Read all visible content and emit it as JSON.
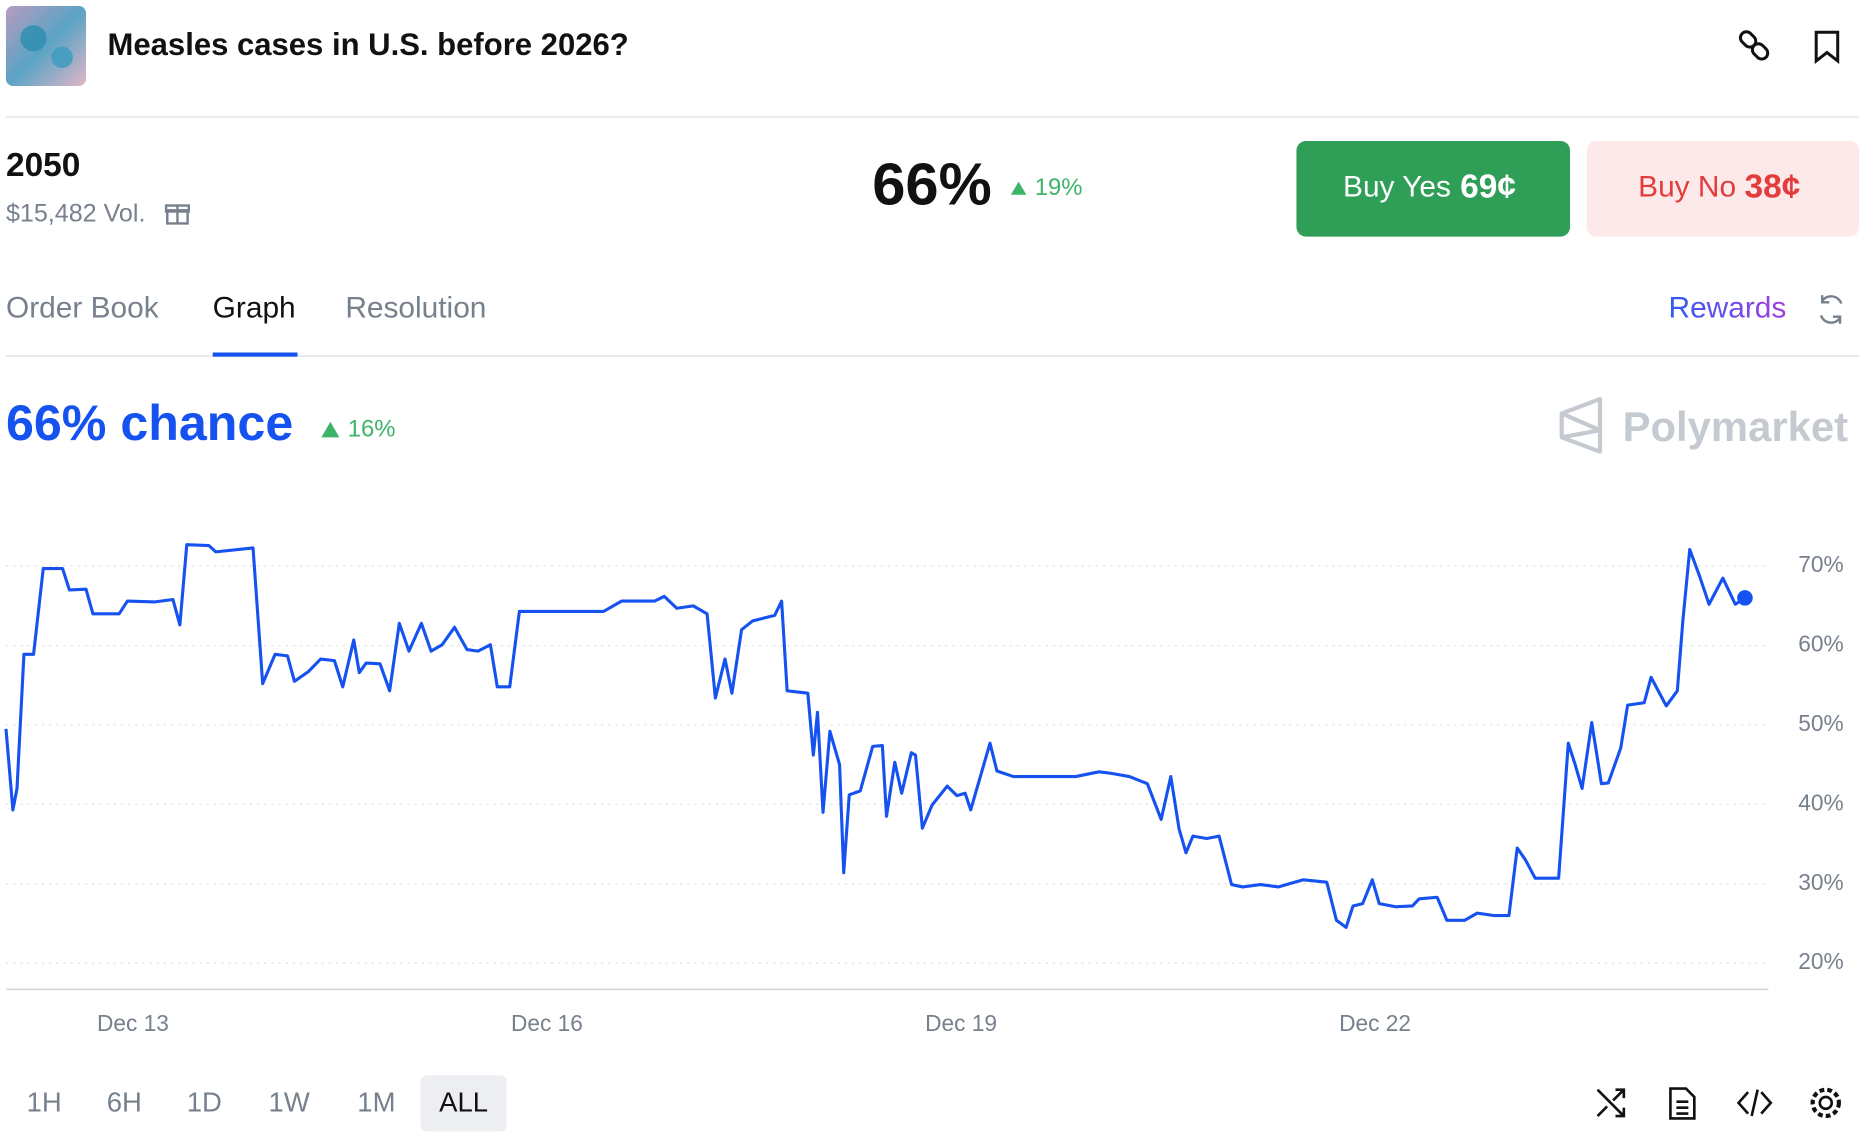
{
  "header": {
    "title": "Measles cases in U.S. before 2026?"
  },
  "market": {
    "name": "2050",
    "volume": "$15,482 Vol.",
    "price": "66%",
    "change": "19%"
  },
  "buttons": {
    "yes": {
      "label": "Buy Yes",
      "price": "69¢"
    },
    "no": {
      "label": "Buy No",
      "price": "38¢"
    }
  },
  "tabs": [
    "Order Book",
    "Graph",
    "Resolution"
  ],
  "rewards": "Rewards",
  "chart_data": {
    "type": "line",
    "title": "66% chance",
    "change": "16%",
    "brand": "Polymarket",
    "x": [
      12.08,
      12.13,
      12.16,
      12.21,
      12.28,
      12.35,
      12.49,
      12.54,
      12.66,
      12.71,
      12.9,
      12.96,
      13.16,
      13.29,
      13.34,
      13.39,
      13.55,
      13.6,
      13.87,
      13.94,
      14.03,
      14.12,
      14.17,
      14.27,
      14.36,
      14.46,
      14.52,
      14.6,
      14.64,
      14.69,
      14.79,
      14.86,
      14.93,
      15.0,
      15.09,
      15.16,
      15.24,
      15.33,
      15.42,
      15.5,
      15.59,
      15.64,
      15.73,
      15.8,
      15.94,
      16.41,
      16.54,
      16.78,
      16.85,
      16.94,
      17.06,
      17.16,
      17.22,
      17.29,
      17.34,
      17.41,
      17.49,
      17.58,
      17.65,
      17.7,
      17.74,
      17.89,
      17.93,
      17.96,
      18.0,
      18.05,
      18.12,
      18.15,
      18.19,
      18.27,
      18.36,
      18.43,
      18.46,
      18.52,
      18.57,
      18.64,
      18.67,
      18.72,
      18.79,
      18.9,
      18.97,
      19.03,
      19.07,
      19.21,
      19.26,
      19.38,
      19.83,
      20.0,
      20.09,
      20.22,
      20.35,
      20.45,
      20.52,
      20.58,
      20.63,
      20.68,
      20.78,
      20.87,
      20.96,
      21.04,
      21.17,
      21.3,
      21.48,
      21.65,
      21.72,
      21.79,
      21.84,
      21.91,
      21.98,
      22.03,
      22.15,
      22.27,
      22.32,
      22.45,
      22.52,
      22.65,
      22.74,
      22.86,
      22.97,
      23.03,
      23.09,
      23.16,
      23.33,
      23.4,
      23.45,
      23.5,
      23.57,
      23.64,
      23.69,
      23.78,
      23.83,
      23.95,
      24.0,
      24.11,
      24.19,
      24.23,
      24.28,
      24.35,
      24.42,
      24.52,
      24.61,
      24.68
    ],
    "series": [
      {
        "color": "#1652f0",
        "values": [
          49.5,
          39.3,
          42,
          58.9,
          58.9,
          69.7,
          69.7,
          67,
          67.1,
          64,
          64,
          65.6,
          65.5,
          65.8,
          62.6,
          72.7,
          72.6,
          71.8,
          72.3,
          55.2,
          58.9,
          58.7,
          55.5,
          56.7,
          58.3,
          58.1,
          54.8,
          60.7,
          56.6,
          57.8,
          57.7,
          54.3,
          62.8,
          59.3,
          62.8,
          59.3,
          60.1,
          62.3,
          59.5,
          59.3,
          60.1,
          54.8,
          54.8,
          64.3,
          64.3,
          64.3,
          65.6,
          65.6,
          66.2,
          64.7,
          65,
          64,
          53.4,
          58.3,
          54,
          62,
          63.1,
          63.5,
          63.8,
          65.6,
          54.3,
          54,
          46.2,
          51.6,
          39,
          49.2,
          45,
          31.4,
          41.2,
          41.7,
          47.3,
          47.4,
          38.5,
          45.3,
          41.4,
          46.5,
          46.2,
          37,
          39.9,
          42.3,
          41.1,
          41.4,
          39.3,
          47.7,
          44.2,
          43.5,
          43.5,
          44.1,
          43.9,
          43.5,
          42.6,
          38.1,
          43.5,
          36.9,
          33.9,
          36,
          35.7,
          36,
          29.9,
          29.6,
          29.9,
          29.6,
          30.5,
          30.2,
          25.4,
          24.5,
          27.2,
          27.5,
          30.5,
          27.5,
          27.1,
          27.2,
          28.1,
          28.3,
          25.4,
          25.4,
          26.3,
          26,
          26,
          34.5,
          33,
          30.7,
          30.7,
          47.7,
          45,
          42,
          50.3,
          42.6,
          42.7,
          47.1,
          52.5,
          52.8,
          56,
          52.4,
          54.3,
          63.1,
          72.1,
          68.8,
          65.2,
          68.5,
          65.2,
          66
        ]
      }
    ],
    "xlim": [
      12.08,
      24.85
    ],
    "ylim": [
      16.7,
      78.1
    ],
    "xticks": [
      {
        "value": 13,
        "label": "Dec 13"
      },
      {
        "value": 16,
        "label": "Dec 16"
      },
      {
        "value": 19,
        "label": "Dec 19"
      },
      {
        "value": 22,
        "label": "Dec 22"
      }
    ],
    "yticks": [
      {
        "value": 20,
        "label": "20%"
      },
      {
        "value": 30,
        "label": "30%"
      },
      {
        "value": 40,
        "label": "40%"
      },
      {
        "value": 50,
        "label": "50%"
      },
      {
        "value": 60,
        "label": "60%"
      },
      {
        "value": 70,
        "label": "70%"
      }
    ],
    "grid": true
  },
  "ranges": [
    "1H",
    "6H",
    "1D",
    "1W",
    "1M",
    "ALL"
  ]
}
